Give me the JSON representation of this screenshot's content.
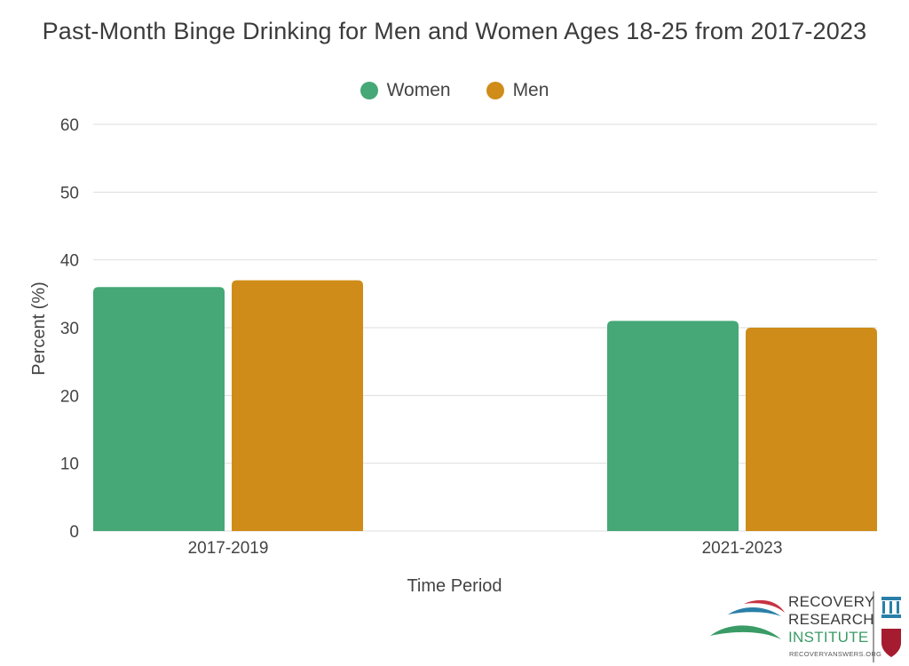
{
  "chart_data": {
    "type": "bar",
    "title": "Past-Month Binge Drinking for Men and Women Ages 18-25 from 2017-2023",
    "xlabel": "Time Period",
    "ylabel": "Percent (%)",
    "ylim": [
      0,
      60
    ],
    "yticks": [
      0,
      10,
      20,
      30,
      40,
      50,
      60
    ],
    "grid": true,
    "legend_position": "top-center",
    "categories": [
      "2017-2019",
      "2021-2023"
    ],
    "series": [
      {
        "name": "Women",
        "color": "#45a876",
        "values": [
          36,
          31
        ]
      },
      {
        "name": "Men",
        "color": "#d08c18",
        "values": [
          37,
          30
        ]
      }
    ]
  },
  "logo": {
    "line1": "RECOVERY",
    "line2": "RESEARCH",
    "line3": "INSTITUTE",
    "url": "RECOVERYANSWERS.ORG"
  }
}
